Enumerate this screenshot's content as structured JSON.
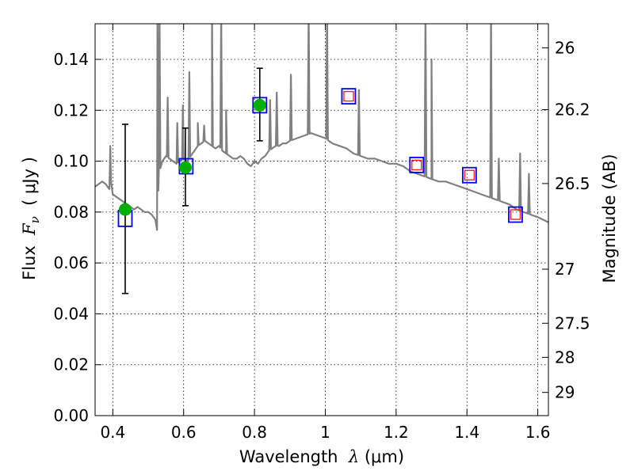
{
  "chart_data": {
    "type": "scatter",
    "xlabel": {
      "pre": "Wavelength  ",
      "sym": "λ",
      "post": " (μm)"
    },
    "ylabel": {
      "pre": "Flux  ",
      "sym": "F",
      "sub": "ν",
      "post": "  ( μJy )"
    },
    "y2label": "Magnitude (AB)",
    "xlim": [
      0.35,
      1.63
    ],
    "ylim": [
      0.0,
      0.154
    ],
    "grid": true,
    "x_ticks": [
      {
        "v": 0.4,
        "label": "0.4"
      },
      {
        "v": 0.6,
        "label": "0.6"
      },
      {
        "v": 0.8,
        "label": "0.8"
      },
      {
        "v": 1.0,
        "label": "1"
      },
      {
        "v": 1.2,
        "label": "1.2"
      },
      {
        "v": 1.4,
        "label": "1.4"
      },
      {
        "v": 1.6,
        "label": "1.6"
      }
    ],
    "y_ticks": [
      {
        "v": 0.0,
        "label": "0.00"
      },
      {
        "v": 0.02,
        "label": "0.02"
      },
      {
        "v": 0.04,
        "label": "0.04"
      },
      {
        "v": 0.06,
        "label": "0.06"
      },
      {
        "v": 0.08,
        "label": "0.08"
      },
      {
        "v": 0.1,
        "label": "0.10"
      },
      {
        "v": 0.12,
        "label": "0.12"
      },
      {
        "v": 0.14,
        "label": "0.14"
      }
    ],
    "mag_ticks": [
      {
        "v": 26,
        "label": "26"
      },
      {
        "v": 26.2,
        "label": "26.2"
      },
      {
        "v": 26.5,
        "label": "26.5"
      },
      {
        "v": 27,
        "label": "27"
      },
      {
        "v": 27.5,
        "label": "27.5"
      },
      {
        "v": 28,
        "label": "28"
      },
      {
        "v": 29,
        "label": "29"
      }
    ],
    "series": [
      {
        "kind": "model_spectrum",
        "color": "#808080",
        "x": [
          0.35,
          0.36,
          0.37,
          0.38,
          0.39,
          0.395,
          0.4,
          0.41,
          0.42,
          0.43,
          0.44,
          0.45,
          0.46,
          0.47,
          0.48,
          0.49,
          0.5,
          0.51,
          0.52,
          0.525,
          0.53,
          0.54,
          0.55,
          0.56,
          0.57,
          0.58,
          0.59,
          0.6,
          0.61,
          0.62,
          0.63,
          0.64,
          0.65,
          0.66,
          0.67,
          0.68,
          0.69,
          0.7,
          0.71,
          0.72,
          0.73,
          0.74,
          0.75,
          0.76,
          0.77,
          0.78,
          0.79,
          0.8,
          0.81,
          0.82,
          0.83,
          0.84,
          0.85,
          0.86,
          0.87,
          0.88,
          0.89,
          0.9,
          0.92,
          0.94,
          0.96,
          0.98,
          1.0,
          1.02,
          1.04,
          1.06,
          1.08,
          1.1,
          1.12,
          1.14,
          1.16,
          1.18,
          1.2,
          1.22,
          1.24,
          1.26,
          1.28,
          1.3,
          1.32,
          1.34,
          1.36,
          1.38,
          1.4,
          1.42,
          1.44,
          1.46,
          1.48,
          1.5,
          1.52,
          1.54,
          1.56,
          1.58,
          1.6,
          1.63
        ],
        "y": [
          0.09,
          0.091,
          0.092,
          0.091,
          0.089,
          0.092,
          0.087,
          0.086,
          0.085,
          0.084,
          0.083,
          0.082,
          0.081,
          0.082,
          0.081,
          0.08,
          0.08,
          0.079,
          0.077,
          0.073,
          0.095,
          0.1,
          0.102,
          0.101,
          0.1,
          0.099,
          0.1,
          0.101,
          0.1,
          0.102,
          0.104,
          0.106,
          0.107,
          0.108,
          0.107,
          0.106,
          0.105,
          0.106,
          0.104,
          0.103,
          0.102,
          0.101,
          0.101,
          0.102,
          0.101,
          0.099,
          0.098,
          0.1,
          0.099,
          0.101,
          0.102,
          0.104,
          0.105,
          0.106,
          0.106,
          0.107,
          0.107,
          0.108,
          0.109,
          0.11,
          0.111,
          0.11,
          0.109,
          0.107,
          0.106,
          0.105,
          0.103,
          0.102,
          0.101,
          0.101,
          0.1,
          0.099,
          0.099,
          0.098,
          0.096,
          0.095,
          0.094,
          0.093,
          0.092,
          0.092,
          0.091,
          0.09,
          0.089,
          0.088,
          0.087,
          0.086,
          0.085,
          0.084,
          0.083,
          0.081,
          0.08,
          0.079,
          0.078,
          0.076
        ],
        "emission_lines": [
          {
            "x": 0.393,
            "peak": 0.106
          },
          {
            "x": 0.526,
            "peak": 0.16
          },
          {
            "x": 0.532,
            "peak": 0.16
          },
          {
            "x": 0.555,
            "peak": 0.125
          },
          {
            "x": 0.582,
            "peak": 0.115
          },
          {
            "x": 0.598,
            "peak": 0.122
          },
          {
            "x": 0.616,
            "peak": 0.135
          },
          {
            "x": 0.64,
            "peak": 0.115
          },
          {
            "x": 0.658,
            "peak": 0.114
          },
          {
            "x": 0.68,
            "peak": 0.16
          },
          {
            "x": 0.706,
            "peak": 0.16
          },
          {
            "x": 0.72,
            "peak": 0.12
          },
          {
            "x": 0.844,
            "peak": 0.124
          },
          {
            "x": 0.863,
            "peak": 0.127
          },
          {
            "x": 0.903,
            "peak": 0.134
          },
          {
            "x": 0.953,
            "peak": 0.16
          },
          {
            "x": 1.005,
            "peak": 0.16
          },
          {
            "x": 1.095,
            "peak": 0.128
          },
          {
            "x": 1.283,
            "peak": 0.16
          },
          {
            "x": 1.3,
            "peak": 0.14
          },
          {
            "x": 1.468,
            "peak": 0.16
          },
          {
            "x": 1.49,
            "peak": 0.101
          },
          {
            "x": 1.55,
            "peak": 0.103
          },
          {
            "x": 1.575,
            "peak": 0.095
          }
        ]
      },
      {
        "kind": "observed_flux",
        "color": "#00b000",
        "x": [
          0.435,
          0.605,
          0.815
        ],
        "y": [
          0.081,
          0.0975,
          0.122
        ],
        "yerr_low": [
          0.048,
          0.0825,
          0.108
        ],
        "yerr_high": [
          0.1145,
          0.113,
          0.1365
        ]
      },
      {
        "kind": "model_band_flux",
        "color": "#0000ff",
        "x": [
          0.435,
          0.607,
          0.815,
          1.066,
          1.258,
          1.407,
          1.537
        ],
        "y": [
          0.0775,
          0.098,
          0.122,
          0.1255,
          0.0985,
          0.0945,
          0.079
        ]
      },
      {
        "kind": "predicted_flux",
        "color": "#ff2020",
        "x": [
          1.066,
          1.258,
          1.407,
          1.537
        ],
        "y": [
          0.1255,
          0.0985,
          0.0945,
          0.079
        ]
      }
    ]
  }
}
